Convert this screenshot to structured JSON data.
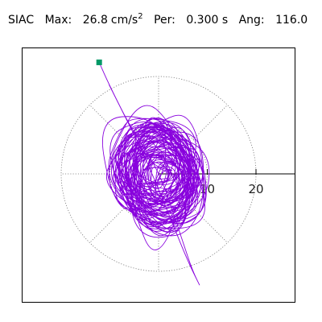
{
  "header": {
    "station": "SIAC",
    "max_label": "Max:",
    "max_value": "26.8",
    "max_unit": "cm/s",
    "max_unit_exp": "2",
    "per_label": "Per:",
    "per_value": "0.300 s",
    "ang_label": "Ang:",
    "ang_value": "116.0"
  },
  "chart_data": {
    "type": "polar-trajectory",
    "title": "",
    "radial_unit": "cm/s2",
    "radial_ticks": [
      10,
      20
    ],
    "radial_tick_labels": [
      "10",
      "20"
    ],
    "rings": [
      10,
      20
    ],
    "spoke_angles_deg": [
      0,
      45,
      90,
      135,
      180,
      225,
      270,
      315
    ],
    "axis_direction_deg": 0,
    "max_amplitude": 26.8,
    "max_angle_deg": 116.0,
    "start_marker": {
      "x": -12.2,
      "y": 22.9,
      "color": "#009966"
    },
    "trace_color": "#8800dd",
    "grid_style": "dotted",
    "trace_extent": {
      "x": [
        -12.5,
        10.5
      ],
      "y": [
        -24.5,
        24.0
      ]
    }
  }
}
